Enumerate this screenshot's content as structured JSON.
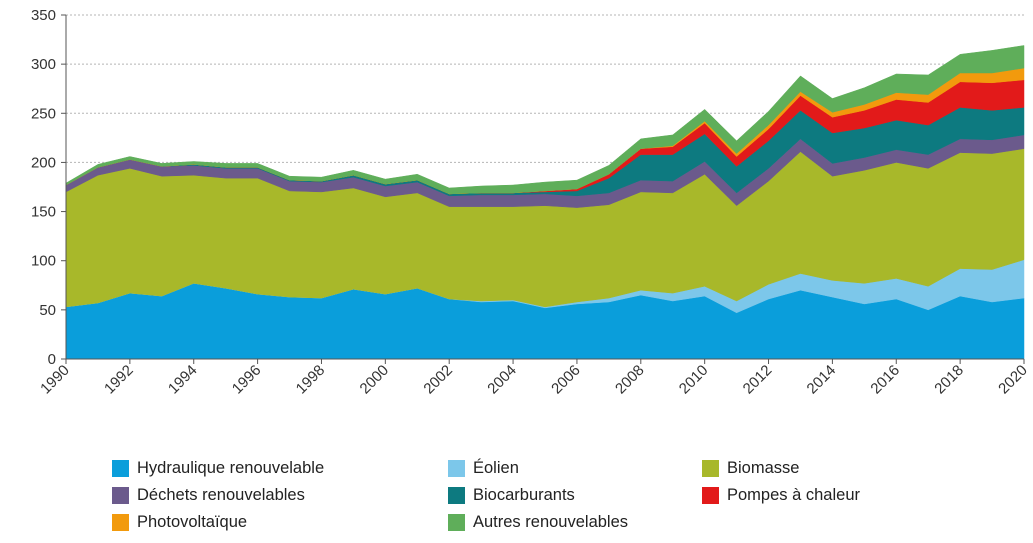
{
  "chart_data": {
    "type": "area",
    "stacked": true,
    "title": "",
    "xlabel": "",
    "ylabel": "",
    "ylim": [
      0,
      350
    ],
    "yticks": [
      0,
      50,
      100,
      150,
      200,
      250,
      300,
      350
    ],
    "xlim": [
      1990,
      2020
    ],
    "xticks": [
      1990,
      1992,
      1994,
      1996,
      1998,
      2000,
      2002,
      2004,
      2006,
      2008,
      2010,
      2012,
      2014,
      2016,
      2018,
      2020
    ],
    "grid": "horizontal dotted",
    "legend_position": "bottom",
    "x": [
      1990,
      1991,
      1992,
      1993,
      1994,
      1995,
      1996,
      1997,
      1998,
      1999,
      2000,
      2001,
      2002,
      2003,
      2004,
      2005,
      2006,
      2007,
      2008,
      2009,
      2010,
      2011,
      2012,
      2013,
      2014,
      2015,
      2016,
      2017,
      2018,
      2019,
      2020
    ],
    "series": [
      {
        "name": "Hydraulique renouvelable",
        "color": "#0a9edb",
        "values": [
          53,
          57,
          67,
          64,
          77,
          72,
          66,
          63,
          62,
          71,
          66,
          72,
          61,
          58,
          59,
          52,
          56,
          58,
          65,
          59,
          64,
          47,
          61,
          70,
          63,
          56,
          61,
          50,
          64,
          58,
          62
        ]
      },
      {
        "name": "Éolien",
        "color": "#7cc7ea",
        "values": [
          0,
          0,
          0,
          0,
          0,
          0,
          0,
          0,
          0,
          0,
          0,
          0,
          0,
          1,
          1,
          1,
          2,
          4,
          5,
          8,
          10,
          12,
          15,
          17,
          17,
          21,
          21,
          24,
          28,
          33,
          39
        ]
      },
      {
        "name": "Biomasse",
        "color": "#a8b82a",
        "values": [
          117,
          130,
          127,
          122,
          110,
          112,
          118,
          108,
          108,
          103,
          99,
          97,
          94,
          96,
          95,
          103,
          96,
          95,
          100,
          102,
          114,
          97,
          105,
          124,
          106,
          115,
          118,
          120,
          118,
          118,
          113
        ]
      },
      {
        "name": "Déchets renouvelables",
        "color": "#6b5a8c",
        "values": [
          7,
          8,
          9,
          10,
          10,
          10,
          10,
          10,
          10,
          11,
          11,
          11,
          11,
          12,
          12,
          12,
          12,
          12,
          12,
          12,
          13,
          13,
          13,
          13,
          13,
          13,
          13,
          14,
          14,
          14,
          14
        ]
      },
      {
        "name": "Biocarburants",
        "color": "#0d7a80",
        "values": [
          0,
          0,
          0,
          0,
          1,
          1,
          1,
          1,
          1,
          2,
          2,
          2,
          2,
          2,
          2,
          2,
          5,
          15,
          26,
          27,
          28,
          27,
          28,
          29,
          31,
          30,
          30,
          30,
          32,
          30,
          28
        ]
      },
      {
        "name": "Pompes à chaleur",
        "color": "#e21a1a",
        "values": [
          0,
          0,
          0,
          0,
          0,
          0,
          0,
          0,
          0,
          0,
          0,
          0,
          0,
          0,
          0,
          1,
          2,
          4,
          6,
          8,
          11,
          10,
          12,
          15,
          16,
          18,
          21,
          23,
          26,
          28,
          28
        ]
      },
      {
        "name": "Photovoltaïque",
        "color": "#f29a0d",
        "values": [
          0,
          0,
          0,
          0,
          0,
          0,
          0,
          0,
          0,
          0,
          0,
          0,
          0,
          0,
          0,
          0,
          0,
          0,
          0,
          1,
          2,
          3,
          4,
          4,
          5,
          6,
          7,
          8,
          9,
          10,
          12
        ]
      },
      {
        "name": "Autres renouvelables",
        "color": "#5fae5a",
        "values": [
          2,
          3,
          3,
          3,
          3,
          4,
          4,
          4,
          4,
          5,
          5,
          6,
          6,
          7,
          8,
          9,
          9,
          9,
          10,
          11,
          12,
          13,
          14,
          16,
          14,
          17,
          19,
          20,
          19,
          23,
          23
        ]
      }
    ]
  }
}
